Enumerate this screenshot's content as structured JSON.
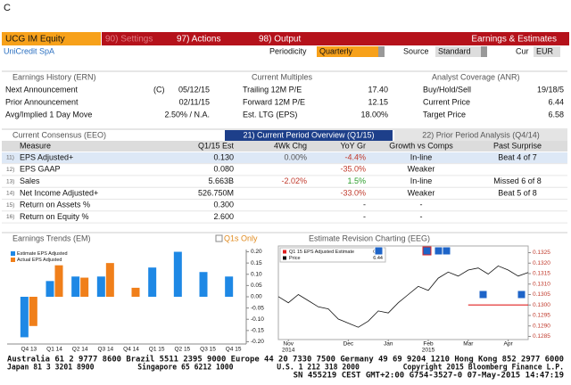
{
  "header": {
    "code": "C",
    "security": "UCG IM Equity",
    "menu": [
      "90) Settings",
      "97) Actions",
      "98) Output"
    ],
    "screen_title": "Earnings & Estimates"
  },
  "subheader": {
    "name": "UniCredit SpA",
    "periodicity_label": "Periodicity",
    "periodicity": "Quarterly",
    "source_label": "Source",
    "source": "Standard",
    "cur_label": "Cur",
    "cur": "EUR"
  },
  "earnings_history": {
    "title": "Earnings History (ERN)",
    "rows": [
      {
        "label": "Next Announcement",
        "flag": "(C)",
        "value": "05/12/15"
      },
      {
        "label": "Prior Announcement",
        "value": "02/11/15"
      },
      {
        "label": "Avg/Implied 1 Day Move",
        "value": "2.50% / N.A."
      }
    ]
  },
  "current_multiples": {
    "title": "Current Multiples",
    "rows": [
      {
        "label": "Trailing 12M P/E",
        "value": "17.40"
      },
      {
        "label": "Forward 12M P/E",
        "value": "12.15"
      },
      {
        "label": "Est. LTG (EPS)",
        "value": "18.00%"
      }
    ]
  },
  "analyst_coverage": {
    "title": "Analyst Coverage (ANR)",
    "rows": [
      {
        "label": "Buy/Hold/Sell",
        "value": "19/18/5"
      },
      {
        "label": "Current Price",
        "value": "6.44"
      },
      {
        "label": "Target Price",
        "value": "6.58"
      }
    ]
  },
  "consensus": {
    "title": "Current Consensus (EEO)",
    "tabs": [
      "21) Current Period Overview (Q1/15)",
      "22) Prior Period Analysis (Q4/14)"
    ],
    "columns": [
      "Measure",
      "Q1/15 Est",
      "4Wk Chg",
      "YoY Gr",
      "Growth vs Comps",
      "Past Surprise"
    ],
    "rows": [
      {
        "num": "11)",
        "measure": "EPS Adjusted+",
        "est": "0.130",
        "chg": "0.00%",
        "yoy": "-4.4%",
        "comps": "In-line",
        "surprise": "Beat 4 of 7"
      },
      {
        "num": "12)",
        "measure": "EPS GAAP",
        "est": "0.080",
        "yoy": "-35.0%",
        "comps": "Weaker"
      },
      {
        "num": "13)",
        "measure": "Sales",
        "est": "5.663B",
        "chg": "-2.02%",
        "yoy": "1.5%",
        "comps": "In-line",
        "surprise": "Missed 6 of 8"
      },
      {
        "num": "14)",
        "measure": "Net Income Adjusted+",
        "est": "526.750M",
        "yoy": "-33.0%",
        "comps": "Weaker",
        "surprise": "Beat 5 of 8"
      },
      {
        "num": "15)",
        "measure": "Return on Assets %",
        "est": "0.300",
        "yoy": "-",
        "comps": "-"
      },
      {
        "num": "16)",
        "measure": "Return on Equity %",
        "est": "2.600",
        "yoy": "-",
        "comps": "-"
      }
    ]
  },
  "checkbox_label": "Q1s Only",
  "chart_data": [
    {
      "type": "bar",
      "title": "Earnings Trends (EM)",
      "categories": [
        "Q4 13",
        "Q1 14",
        "Q2 14",
        "Q3 14",
        "Q4 14",
        "Q1 15",
        "Q2 15",
        "Q3 15",
        "Q4 15"
      ],
      "series": [
        {
          "name": "Estimate EPS Adjusted",
          "color": "#1e88e5",
          "values": [
            -0.18,
            0.07,
            0.09,
            0.09,
            null,
            0.13,
            0.2,
            0.11,
            0.09
          ]
        },
        {
          "name": "Actual EPS Adjusted",
          "color": "#f07f1a",
          "values": [
            -0.13,
            0.14,
            0.085,
            0.15,
            0.04,
            null,
            null,
            null,
            null
          ]
        }
      ],
      "ylim": [
        -0.21,
        0.21
      ],
      "yticks": [
        {
          "value": 0.2,
          "label": "0.20"
        },
        {
          "value": 0.15,
          "label": "0.15"
        },
        {
          "value": 0.1,
          "label": "0.10"
        },
        {
          "value": 0.05,
          "label": "0.05"
        },
        {
          "value": 0,
          "label": "0.00"
        },
        {
          "value": -0.05,
          "label": "-0.05"
        },
        {
          "value": -0.1,
          "label": "-0.10"
        },
        {
          "value": -0.15,
          "label": "-0.15"
        },
        {
          "value": -0.2,
          "label": "-0.20"
        }
      ],
      "legend": "upper left"
    },
    {
      "type": "line",
      "title": "Estimate Revision Charting (EEG)",
      "categories": [
        null,
        "Nov",
        null,
        null,
        null,
        null,
        null,
        "Dec",
        null,
        null,
        null,
        "Jan",
        null,
        null,
        null,
        "Feb",
        null,
        null,
        null,
        "Mar",
        null,
        null,
        null,
        "Apr",
        null,
        null
      ],
      "x_sublabels": [
        null,
        "2014",
        null,
        null,
        null,
        null,
        null,
        null,
        null,
        null,
        null,
        null,
        null,
        null,
        null,
        "2015",
        null,
        null,
        null,
        null,
        null,
        null,
        null,
        null,
        null,
        null
      ],
      "series": [
        {
          "name": "Q1 15 EPS Adjusted Estimate",
          "color": "#e02020",
          "last": 0.13,
          "values": [
            null,
            null,
            null,
            null,
            null,
            null,
            null,
            null,
            null,
            null,
            null,
            null,
            null,
            null,
            null,
            null,
            null,
            null,
            null,
            0.13,
            0.13,
            0.13,
            0.13,
            0.13,
            0.13,
            0.13
          ]
        },
        {
          "name": "Price",
          "color": "#111111",
          "last": 6.44,
          "axis": "y2",
          "values": [
            5.85,
            5.7,
            5.9,
            5.75,
            5.6,
            5.55,
            5.3,
            5.2,
            5.1,
            5.25,
            5.5,
            5.45,
            5.7,
            5.9,
            6.1,
            6.0,
            6.3,
            6.45,
            6.35,
            6.5,
            6.55,
            6.4,
            6.6,
            6.5,
            6.35,
            6.44
          ]
        }
      ],
      "ylim": [
        0.12835,
        0.13265
      ],
      "yticks": [
        0.1325,
        {
          "value": 0.132,
          "label": "0.1320"
        },
        0.1315,
        {
          "value": 0.131,
          "label": "0.1310"
        },
        0.1305,
        {
          "value": 0.13,
          "label": "0.1300"
        },
        0.1295,
        {
          "value": 0.129,
          "label": "0.1290"
        },
        0.1285
      ],
      "y2lim": [
        4.8,
        7.0
      ],
      "legend": "upper left"
    }
  ],
  "footer": {
    "lines": [
      "Australia 61 2 9777 8600 Brazil 5511 2395 9000 Europe 44 20 7330 7500 Germany 49 69 9204 1210 Hong Kong 852 2977 6000",
      "Japan 81 3 3201 8900          Singapore 65 6212 1000          U.S. 1 212 318 2000          Copyright 2015 Bloomberg Finance L.P.",
      "SN 455219 CEST GMT+2:00 G754-3527-0 07-May-2015 14:47:19"
    ]
  }
}
